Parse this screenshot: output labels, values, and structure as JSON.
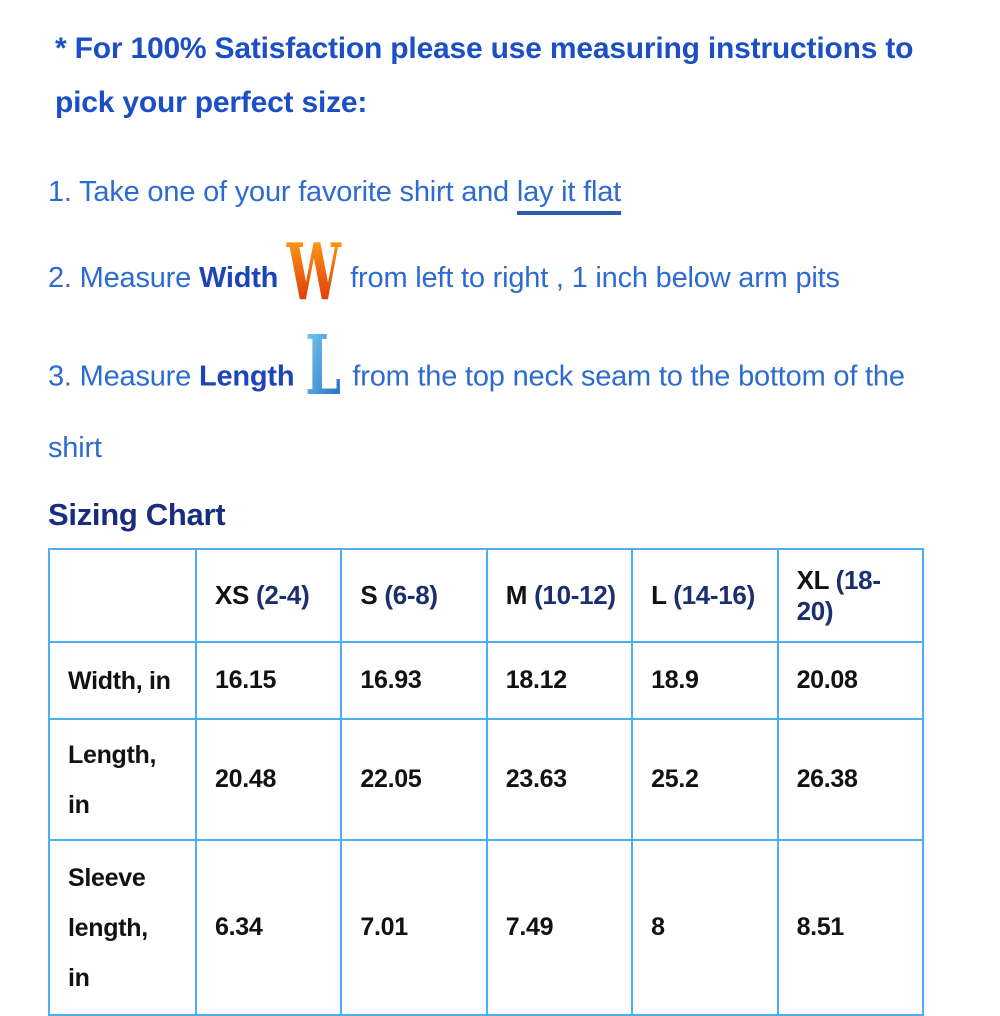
{
  "colors": {
    "intro_blue": "#1c4fc4",
    "step_text_blue": "#2e6bd1",
    "bold_keyword_blue": "#1c45b8",
    "heading_navy": "#192d7c",
    "link_underline_blue": "#2b5dae",
    "table_border_blue": "#4daef0",
    "table_text_black": "#121212",
    "size_range_navy": "#1b2e6e",
    "w_icon_gradient": [
      "#ffae1c",
      "#f06c10",
      "#d22508"
    ],
    "l_icon_gradient": [
      "#7ed0f5",
      "#1a66c0"
    ]
  },
  "intro": {
    "text": "* For 100% Satisfaction please use measuring instructions to pick your perfect size:"
  },
  "steps": [
    {
      "text_before_link": "1. Take one of your favorite shirt and",
      "link_text": "lay it flat"
    },
    {
      "text_before_bold": "2. Measure",
      "bold_text": "Width",
      "icon": "letter-w-icon",
      "icon_letter": "W",
      "text_after_icon": "from left to right , 1 inch below arm pits"
    },
    {
      "text_before_bold": "3. Measure",
      "bold_text": "Length",
      "icon": "letter-l-icon",
      "icon_letter": "L",
      "text_after_icon": "from the top neck seam to the bottom of the shirt"
    }
  ],
  "sizing_chart": {
    "heading": "Sizing Chart",
    "columns": [
      {
        "size": "",
        "range": ""
      },
      {
        "size": "XS",
        "range": "(2-4)"
      },
      {
        "size": "S",
        "range": "(6-8)"
      },
      {
        "size": "M",
        "range": "(10-12)"
      },
      {
        "size": "L",
        "range": "(14-16)"
      },
      {
        "size": "XL",
        "range": "(18-20)"
      }
    ],
    "rows": [
      {
        "label_lines": [
          "Width, in"
        ],
        "values": [
          "16.15",
          "16.93",
          "18.12",
          "18.9",
          "20.08"
        ]
      },
      {
        "label_lines": [
          "Length,",
          "in"
        ],
        "values": [
          "20.48",
          "22.05",
          "23.63",
          "25.2",
          "26.38"
        ]
      },
      {
        "label_lines": [
          "Sleeve",
          "length,",
          "in"
        ],
        "values": [
          "6.34",
          "7.01",
          "7.49",
          "8",
          "8.51"
        ]
      }
    ]
  },
  "chart_data": {
    "type": "table",
    "title": "Sizing Chart",
    "columns": [
      "",
      "XS (2-4)",
      "S (6-8)",
      "M (10-12)",
      "L (14-16)",
      "XL (18-20)"
    ],
    "rows": [
      [
        "Width, in",
        16.15,
        16.93,
        18.12,
        18.9,
        20.08
      ],
      [
        "Length, in",
        20.48,
        22.05,
        23.63,
        25.2,
        26.38
      ],
      [
        "Sleeve length, in",
        6.34,
        7.01,
        7.49,
        8,
        8.51
      ]
    ]
  }
}
